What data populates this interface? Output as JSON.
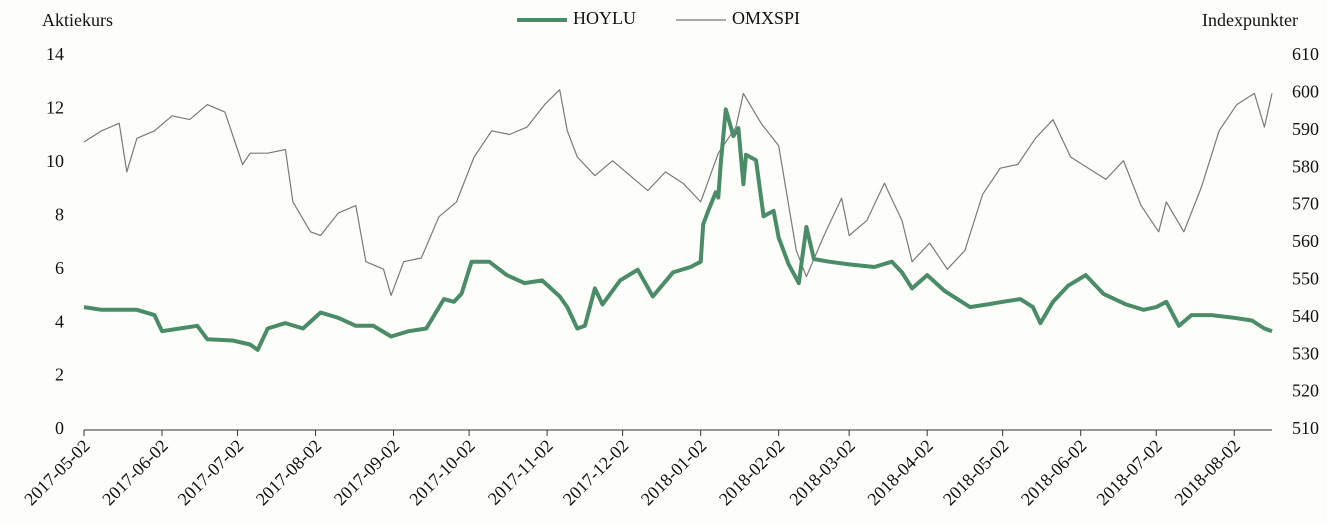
{
  "chart_data": {
    "type": "line",
    "ylabel": "Aktiekurs",
    "y2label": "Indexpunkter",
    "xlim": [
      "2017-05-02",
      "2018-08-17"
    ],
    "xticks": [
      "2017-05-02",
      "2017-06-02",
      "2017-07-02",
      "2017-08-02",
      "2017-09-02",
      "2017-10-02",
      "2017-11-02",
      "2017-12-02",
      "2018-01-02",
      "2018-02-02",
      "2018-03-02",
      "2018-04-02",
      "2018-05-02",
      "2018-06-02",
      "2018-07-02",
      "2018-08-02"
    ],
    "ylim": [
      0,
      14
    ],
    "yticks": [
      0,
      2,
      4,
      6,
      8,
      10,
      12,
      14
    ],
    "y2lim": [
      510,
      610
    ],
    "y2ticks": [
      510,
      520,
      530,
      540,
      550,
      560,
      570,
      580,
      590,
      600,
      610
    ],
    "legend": "top",
    "series": [
      {
        "name": "HOYLU",
        "color": "#4a8c68",
        "axis": "y",
        "x": [
          "2017-05-02",
          "2017-05-09",
          "2017-05-16",
          "2017-05-23",
          "2017-05-30",
          "2017-06-02",
          "2017-06-09",
          "2017-06-16",
          "2017-06-20",
          "2017-06-30",
          "2017-07-07",
          "2017-07-10",
          "2017-07-14",
          "2017-07-21",
          "2017-07-28",
          "2017-08-04",
          "2017-08-11",
          "2017-08-18",
          "2017-08-25",
          "2017-09-01",
          "2017-09-08",
          "2017-09-15",
          "2017-09-22",
          "2017-09-26",
          "2017-09-29",
          "2017-10-03",
          "2017-10-10",
          "2017-10-17",
          "2017-10-24",
          "2017-10-31",
          "2017-11-07",
          "2017-11-10",
          "2017-11-14",
          "2017-11-17",
          "2017-11-21",
          "2017-11-24",
          "2017-12-01",
          "2017-12-08",
          "2017-12-14",
          "2017-12-22",
          "2017-12-29",
          "2018-01-02",
          "2018-01-03",
          "2018-01-05",
          "2018-01-08",
          "2018-01-09",
          "2018-01-10",
          "2018-01-12",
          "2018-01-15",
          "2018-01-17",
          "2018-01-19",
          "2018-01-20",
          "2018-01-24",
          "2018-01-27",
          "2018-01-31",
          "2018-02-02",
          "2018-02-06",
          "2018-02-10",
          "2018-02-13",
          "2018-02-16",
          "2018-02-22",
          "2018-03-02",
          "2018-03-12",
          "2018-03-19",
          "2018-03-23",
          "2018-03-27",
          "2018-04-02",
          "2018-04-09",
          "2018-04-19",
          "2018-04-26",
          "2018-05-02",
          "2018-05-09",
          "2018-05-14",
          "2018-05-17",
          "2018-05-22",
          "2018-05-28",
          "2018-06-04",
          "2018-06-11",
          "2018-06-20",
          "2018-06-27",
          "2018-07-02",
          "2018-07-06",
          "2018-07-11",
          "2018-07-16",
          "2018-07-24",
          "2018-08-02",
          "2018-08-09",
          "2018-08-14",
          "2018-08-17"
        ],
        "values": [
          4.6,
          4.5,
          4.5,
          4.5,
          4.3,
          3.7,
          3.8,
          3.9,
          3.4,
          3.35,
          3.2,
          3.0,
          3.8,
          4.0,
          3.8,
          4.4,
          4.2,
          3.9,
          3.9,
          3.5,
          3.7,
          3.8,
          4.9,
          4.8,
          5.1,
          6.3,
          6.3,
          5.8,
          5.5,
          5.6,
          5.0,
          4.6,
          3.8,
          3.9,
          5.3,
          4.7,
          5.6,
          6.0,
          5.0,
          5.9,
          6.1,
          6.3,
          7.7,
          8.2,
          8.9,
          8.7,
          10.0,
          12.0,
          11.0,
          11.3,
          9.2,
          10.3,
          10.1,
          8.0,
          8.2,
          7.2,
          6.2,
          5.5,
          7.6,
          6.4,
          6.3,
          6.2,
          6.1,
          6.3,
          5.9,
          5.3,
          5.8,
          5.2,
          4.6,
          4.7,
          4.8,
          4.9,
          4.6,
          4.0,
          4.8,
          5.4,
          5.8,
          5.1,
          4.7,
          4.5,
          4.6,
          4.8,
          3.9,
          4.3,
          4.3,
          4.2,
          4.1,
          3.8,
          3.7
        ]
      },
      {
        "name": "OMXSPI",
        "color": "#7a7a7a",
        "axis": "y2",
        "x": [
          "2017-05-02",
          "2017-05-09",
          "2017-05-16",
          "2017-05-19",
          "2017-05-23",
          "2017-05-30",
          "2017-06-06",
          "2017-06-13",
          "2017-06-20",
          "2017-06-27",
          "2017-07-04",
          "2017-07-07",
          "2017-07-14",
          "2017-07-21",
          "2017-07-24",
          "2017-07-31",
          "2017-08-04",
          "2017-08-11",
          "2017-08-18",
          "2017-08-22",
          "2017-08-29",
          "2017-09-01",
          "2017-09-06",
          "2017-09-13",
          "2017-09-20",
          "2017-09-27",
          "2017-10-04",
          "2017-10-11",
          "2017-10-18",
          "2017-10-25",
          "2017-11-01",
          "2017-11-07",
          "2017-11-10",
          "2017-11-14",
          "2017-11-21",
          "2017-11-28",
          "2017-12-05",
          "2017-12-12",
          "2017-12-19",
          "2017-12-26",
          "2018-01-02",
          "2018-01-09",
          "2018-01-16",
          "2018-01-19",
          "2018-01-26",
          "2018-02-02",
          "2018-02-06",
          "2018-02-09",
          "2018-02-13",
          "2018-02-20",
          "2018-02-27",
          "2018-03-02",
          "2018-03-09",
          "2018-03-16",
          "2018-03-23",
          "2018-03-27",
          "2018-04-03",
          "2018-04-10",
          "2018-04-17",
          "2018-04-24",
          "2018-05-01",
          "2018-05-08",
          "2018-05-15",
          "2018-05-22",
          "2018-05-29",
          "2018-06-05",
          "2018-06-12",
          "2018-06-19",
          "2018-06-26",
          "2018-07-03",
          "2018-07-06",
          "2018-07-13",
          "2018-07-20",
          "2018-07-27",
          "2018-08-03",
          "2018-08-10",
          "2018-08-14",
          "2018-08-17"
        ],
        "values": [
          587,
          590,
          592,
          579,
          588,
          590,
          594,
          593,
          597,
          595,
          581,
          584,
          584,
          585,
          571,
          563,
          562,
          568,
          570,
          555,
          553,
          546,
          555,
          556,
          567,
          571,
          583,
          590,
          589,
          591,
          597,
          601,
          590,
          583,
          578,
          582,
          578,
          574,
          579,
          576,
          571,
          584,
          591,
          600,
          592,
          586,
          570,
          558,
          551,
          562,
          572,
          562,
          566,
          576,
          566,
          555,
          560,
          553,
          558,
          573,
          580,
          581,
          588,
          593,
          583,
          580,
          577,
          582,
          570,
          563,
          571,
          563,
          575,
          590,
          597,
          600,
          591,
          600
        ]
      }
    ]
  }
}
